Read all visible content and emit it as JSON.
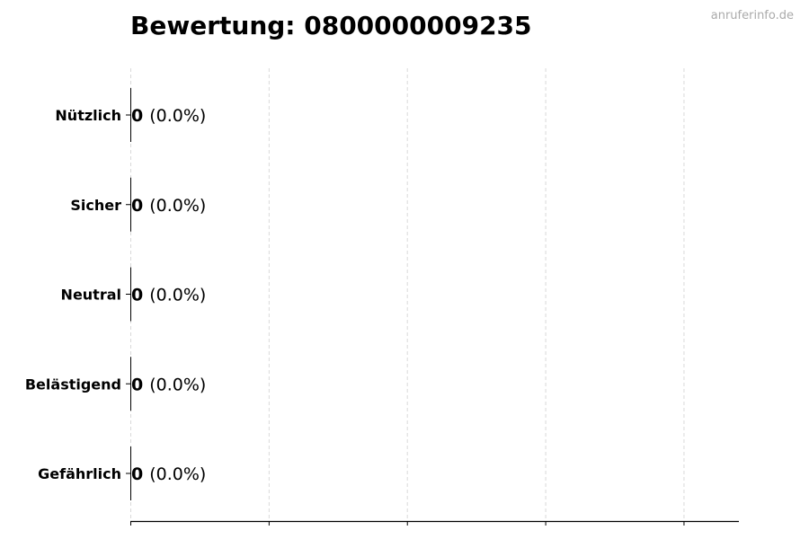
{
  "watermark": "anruferinfo.de",
  "chart_data": {
    "type": "bar",
    "orientation": "horizontal",
    "title": "Bewertung: 0800000009235",
    "categories": [
      "Nützlich",
      "Sicher",
      "Neutral",
      "Belästigend",
      "Gefährlich"
    ],
    "values": [
      0,
      0,
      0,
      0,
      0
    ],
    "percent_labels": [
      "(0.0%)",
      "(0.0%)",
      "(0.0%)",
      "(0.0%)",
      "(0.0%)"
    ],
    "xlabel": "",
    "ylabel": "",
    "xlim": [
      0,
      4.4
    ],
    "x_ticks": [
      0,
      1,
      2,
      3,
      4
    ],
    "x_tick_labels_shown": false,
    "grid": "x dashed",
    "colors": {
      "bar_edge": "#000000",
      "grid": "#d9d9d9",
      "watermark": "#aaaaaa"
    }
  }
}
